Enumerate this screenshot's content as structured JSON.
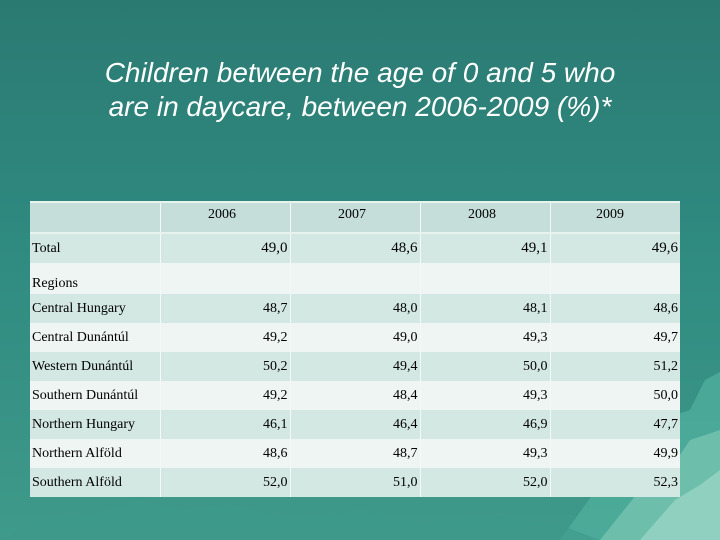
{
  "title": {
    "line1": "Children between the age of  0 and 5 who",
    "line2": "are in daycare, between 2006-2009 (%)*"
  },
  "table": {
    "years": [
      "2006",
      "2007",
      "2008",
      "2009"
    ],
    "total": {
      "label": "Total",
      "values": [
        "49,0",
        "48,6",
        "49,1",
        "49,6"
      ]
    },
    "regions_label": "Regions",
    "rows": [
      {
        "label": "Central Hungary",
        "values": [
          "48,7",
          "48,0",
          "48,1",
          "48,6"
        ]
      },
      {
        "label": "Central Dunántúl",
        "values": [
          "49,2",
          "49,0",
          "49,3",
          "49,7"
        ]
      },
      {
        "label": "Western Dunántúl",
        "values": [
          "50,2",
          "49,4",
          "50,0",
          "51,2"
        ]
      },
      {
        "label": "Southern Dunántúl",
        "values": [
          "49,2",
          "48,4",
          "49,3",
          "50,0"
        ]
      },
      {
        "label": "Northern Hungary",
        "values": [
          "46,1",
          "46,4",
          "46,9",
          "47,7"
        ]
      },
      {
        "label": "Northern Alföld",
        "values": [
          "48,6",
          "48,7",
          "49,3",
          "49,9"
        ]
      },
      {
        "label": "Southern Alföld",
        "values": [
          "52,0",
          "51,0",
          "52,0",
          "52,3"
        ]
      }
    ]
  },
  "colors": {
    "background": "#2f8a80",
    "row_dark": "#d3e8e3",
    "row_light": "#eef5f3"
  }
}
